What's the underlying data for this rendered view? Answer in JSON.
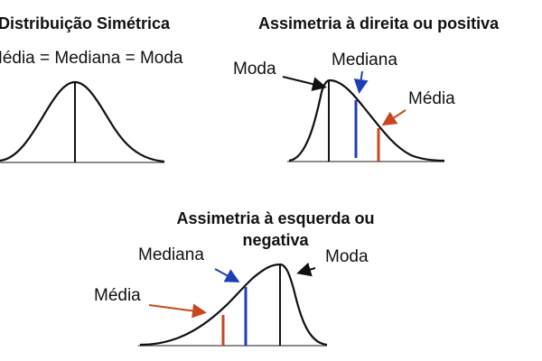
{
  "panels": {
    "symmetric": {
      "title": "Distribuição Simétrica",
      "subtitle": "Média = Mediana = Moda"
    },
    "right_skew": {
      "title": "Assimetria à direita ou positiva",
      "moda": "Moda",
      "mediana": "Mediana",
      "media": "Média"
    },
    "left_skew": {
      "title_line1": "Assimetria à esquerda ou",
      "title_line2": "negativa",
      "moda": "Moda",
      "mediana": "Mediana",
      "media": "Média"
    }
  },
  "colors": {
    "curve": "#111111",
    "median": "#1f3fb5",
    "mean": "#c8471f",
    "mode": "#111111"
  }
}
